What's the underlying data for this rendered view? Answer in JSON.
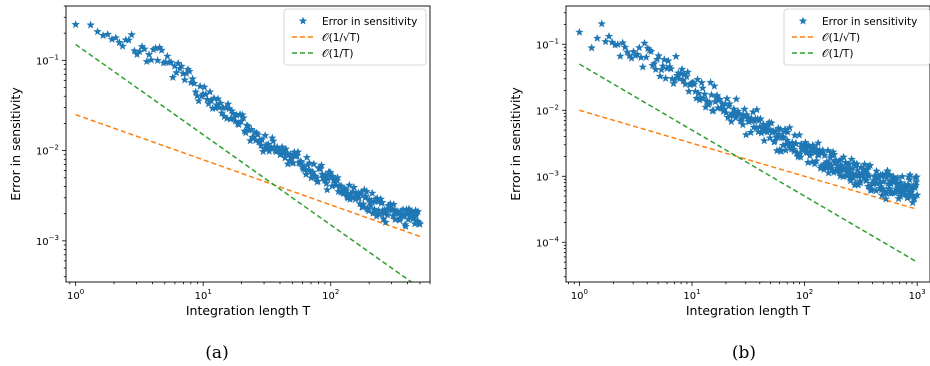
{
  "chart_data": [
    {
      "id": "a",
      "type": "scatter",
      "caption": "(a)",
      "xlabel": "Integration length T",
      "ylabel": "Error in sensitivity",
      "xscale": "log",
      "yscale": "log",
      "xlim": [
        0.84,
        600
      ],
      "ylim": [
        0.00035,
        0.4
      ],
      "grid": false,
      "legend_position": "top-right",
      "xticks": [
        {
          "value": 1,
          "base": "10",
          "exp": "0"
        },
        {
          "value": 10,
          "base": "10",
          "exp": "1"
        },
        {
          "value": 100,
          "base": "10",
          "exp": "2"
        }
      ],
      "yticks": [
        {
          "value": 0.001,
          "base": "10",
          "exp": "−3"
        },
        {
          "value": 0.01,
          "base": "10",
          "exp": "−2"
        },
        {
          "value": 0.1,
          "base": "10",
          "exp": "−1"
        }
      ],
      "series": [
        {
          "name": "Error in sensitivity",
          "kind": "scatter",
          "marker": "star",
          "color": "#1f77b4",
          "x_range": [
            1,
            500
          ],
          "n_points": 300,
          "profile_x": [
            1,
            1.5,
            2,
            3,
            5,
            8,
            12,
            20,
            30,
            50,
            80,
            120,
            200,
            300,
            500
          ],
          "profile_y": [
            0.28,
            0.22,
            0.18,
            0.14,
            0.095,
            0.06,
            0.032,
            0.02,
            0.012,
            0.0082,
            0.0055,
            0.0038,
            0.0026,
            0.0021,
            0.0017
          ]
        },
        {
          "name": "𝒪(1/√T)",
          "kind": "reference-line",
          "style": "dashed",
          "color": "#ff7f0e",
          "x": [
            1,
            500
          ],
          "y": [
            0.025,
            0.00112
          ]
        },
        {
          "name": "𝒪(1/T)",
          "kind": "reference-line",
          "style": "dashed",
          "color": "#2ca02c",
          "x": [
            1,
            500
          ],
          "y": [
            0.15,
            0.0003
          ]
        }
      ]
    },
    {
      "id": "b",
      "type": "scatter",
      "caption": "(b)",
      "xlabel": "Integration length T",
      "ylabel": "Error in sensitivity",
      "xscale": "log",
      "yscale": "log",
      "xlim": [
        0.76,
        1300
      ],
      "ylim": [
        2.5e-05,
        0.38
      ],
      "grid": false,
      "legend_position": "top-right",
      "xticks": [
        {
          "value": 1,
          "base": "10",
          "exp": "0"
        },
        {
          "value": 10,
          "base": "10",
          "exp": "1"
        },
        {
          "value": 100,
          "base": "10",
          "exp": "2"
        },
        {
          "value": 1000,
          "base": "10",
          "exp": "3"
        }
      ],
      "yticks": [
        {
          "value": 0.0001,
          "base": "10",
          "exp": "−4"
        },
        {
          "value": 0.001,
          "base": "10",
          "exp": "−3"
        },
        {
          "value": 0.01,
          "base": "10",
          "exp": "−2"
        },
        {
          "value": 0.1,
          "base": "10",
          "exp": "−1"
        }
      ],
      "series": [
        {
          "name": "Error in sensitivity",
          "kind": "scatter",
          "marker": "star",
          "color": "#1f77b4",
          "x_range": [
            1,
            1000
          ],
          "n_points": 420,
          "profile_x": [
            1,
            1.5,
            2,
            3,
            5,
            8,
            12,
            20,
            30,
            50,
            80,
            120,
            200,
            400,
            700,
            1000
          ],
          "profile_y": [
            0.19,
            0.15,
            0.12,
            0.085,
            0.05,
            0.032,
            0.018,
            0.011,
            0.0075,
            0.0048,
            0.003,
            0.0021,
            0.0014,
            0.0009,
            0.0007,
            0.00065
          ]
        },
        {
          "name": "𝒪(1/√T)",
          "kind": "reference-line",
          "style": "dashed",
          "color": "#ff7f0e",
          "x": [
            1,
            1000
          ],
          "y": [
            0.01,
            0.000316
          ]
        },
        {
          "name": "𝒪(1/T)",
          "kind": "reference-line",
          "style": "dashed",
          "color": "#2ca02c",
          "x": [
            1,
            1000
          ],
          "y": [
            0.05,
            5e-05
          ]
        }
      ]
    }
  ]
}
